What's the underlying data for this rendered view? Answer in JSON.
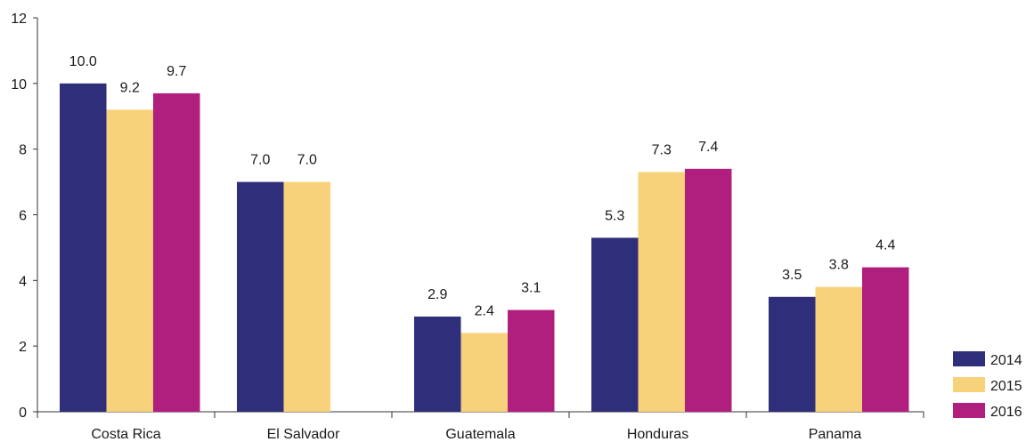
{
  "chart_data": {
    "type": "bar",
    "title": "",
    "xlabel": "",
    "ylabel": "",
    "ylim": [
      0,
      12
    ],
    "yticks": [
      "0",
      "2",
      "4",
      "6",
      "8",
      "10",
      "12"
    ],
    "grid": false,
    "legend_position": "bottom-right",
    "categories": [
      "Costa Rica",
      "El Salvador",
      "Guatemala",
      "Honduras",
      "Panama"
    ],
    "series": [
      {
        "name": "2014",
        "color": "#2e2e7a",
        "values": [
          10.0,
          7.0,
          2.9,
          5.3,
          3.5
        ],
        "labels": [
          "10.0",
          "7.0",
          "2.9",
          "5.3",
          "3.5"
        ]
      },
      {
        "name": "2015",
        "color": "#f7d27a",
        "values": [
          9.2,
          7.0,
          2.4,
          7.3,
          3.8
        ],
        "labels": [
          "9.2",
          "7.0",
          "2.4",
          "7.3",
          "3.8"
        ]
      },
      {
        "name": "2016",
        "color": "#b01f7e",
        "values": [
          9.7,
          null,
          3.1,
          7.4,
          4.4
        ],
        "labels": [
          "9.7",
          "",
          "3.1",
          "7.4",
          "4.4"
        ]
      }
    ]
  }
}
